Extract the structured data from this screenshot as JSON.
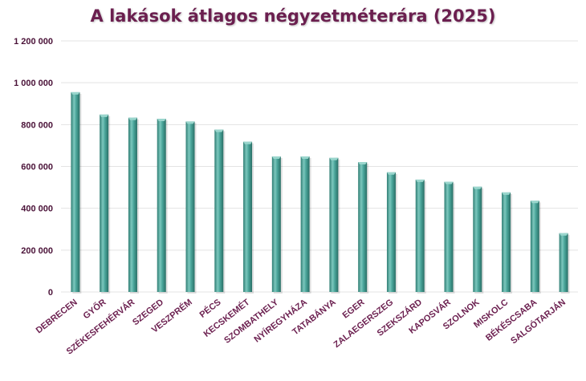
{
  "chart_data": {
    "type": "bar",
    "title": "A lakások átlagos négyzetméterára (2025)",
    "xlabel": "",
    "ylabel": "",
    "ylim": [
      0,
      1200000
    ],
    "yticks": [
      0,
      200000,
      400000,
      600000,
      800000,
      1000000,
      1200000
    ],
    "ytick_labels": [
      "0",
      "200 000",
      "400 000",
      "600 000",
      "800 000",
      "1 000 000",
      "1 200 000"
    ],
    "grid": true,
    "bar_color": "#4aa59a",
    "categories": [
      "DEBRECEN",
      "GYŐR",
      "SZÉKESFEHÉRVÁR",
      "SZEGED",
      "VESZPRÉM",
      "PÉCS",
      "KECSKEMÉT",
      "SZOMBATHELY",
      "NYÍREGYHÁZA",
      "TATABÁNYA",
      "EGER",
      "ZALAEGERSZEG",
      "SZEKSZÁRD",
      "KAPOSVÁR",
      "SZOLNOK",
      "MISKOLC",
      "BÉKÉSCSABA",
      "SALGÓTARJÁN"
    ],
    "values": [
      955000,
      848000,
      833000,
      828000,
      815000,
      776000,
      718000,
      648000,
      648000,
      641000,
      621000,
      572000,
      537000,
      527000,
      503000,
      476000,
      436000,
      281000
    ]
  }
}
